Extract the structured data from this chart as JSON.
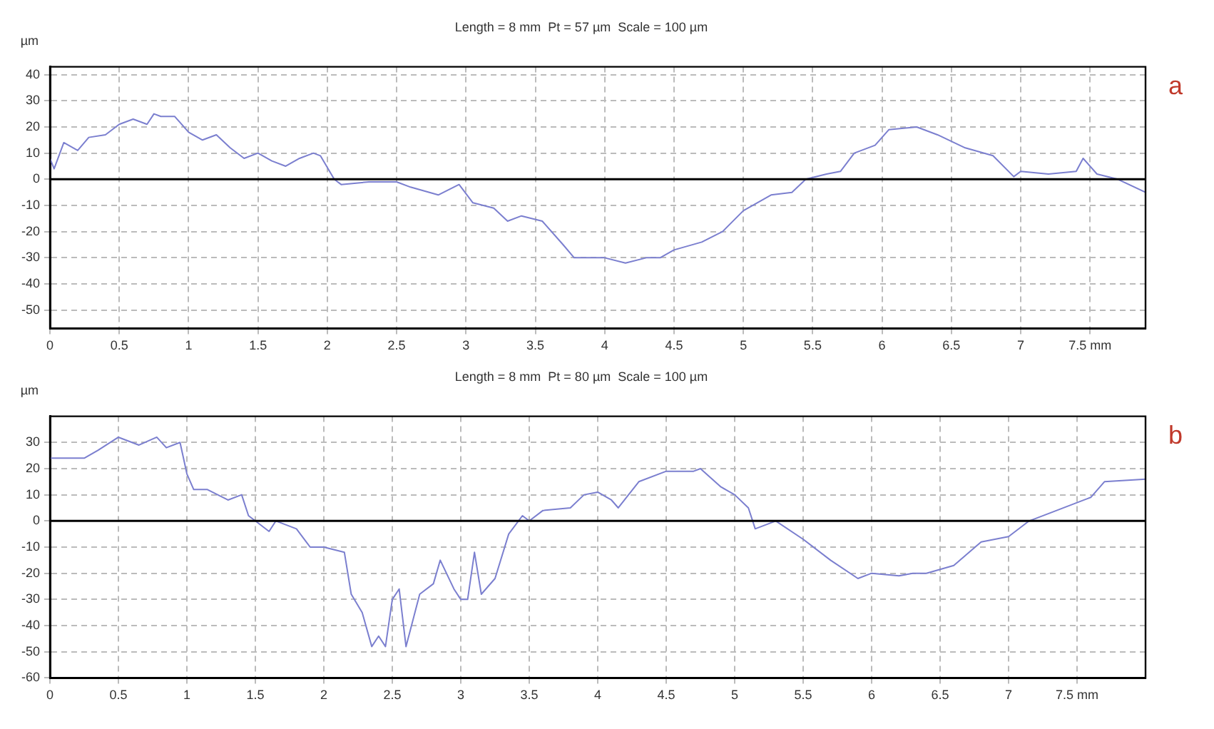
{
  "chart_data": [
    {
      "type": "line",
      "title": "Length = 8 mm  Pt = 57 µm  Scale = 100 µm",
      "ylabel": "µm",
      "annotations": [
        "a"
      ],
      "series": [
        {
          "color": "#7b7fcf",
          "x": [
            0,
            0.03,
            0.1,
            0.2,
            0.28,
            0.4,
            0.5,
            0.6,
            0.7,
            0.75,
            0.8,
            0.9,
            1.0,
            1.1,
            1.2,
            1.3,
            1.4,
            1.5,
            1.6,
            1.7,
            1.8,
            1.9,
            1.95,
            2.05,
            2.1,
            2.3,
            2.5,
            2.6,
            2.8,
            2.95,
            3.05,
            3.2,
            3.3,
            3.4,
            3.55,
            3.7,
            3.78,
            4.0,
            4.15,
            4.3,
            4.4,
            4.5,
            4.7,
            4.85,
            5.0,
            5.2,
            5.35,
            5.45,
            5.6,
            5.7,
            5.8,
            5.95,
            6.05,
            6.25,
            6.4,
            6.6,
            6.8,
            6.95,
            7.0,
            7.2,
            7.4,
            7.45,
            7.55,
            7.7,
            7.9
          ],
          "values": [
            8,
            4,
            14,
            11,
            16,
            17,
            21,
            23,
            21,
            25,
            24,
            24,
            18,
            15,
            17,
            12,
            8,
            10,
            7,
            5,
            8,
            10,
            9,
            0,
            -2,
            -1,
            -1,
            -3,
            -6,
            -2,
            -9,
            -11,
            -16,
            -14,
            -16,
            -25,
            -30,
            -30,
            -32,
            -30,
            -30,
            -27,
            -24,
            -20,
            -12,
            -6,
            -5,
            0,
            2,
            3,
            10,
            13,
            19,
            20,
            17,
            12,
            9,
            1,
            3,
            2,
            3,
            8,
            2,
            0,
            -5
          ]
        }
      ],
      "xlim": [
        0,
        7.9
      ],
      "xticks": [
        0,
        0.5,
        1,
        1.5,
        2,
        2.5,
        3,
        3.5,
        4,
        4.5,
        5,
        5.5,
        6,
        6.5,
        7,
        {
          "value": 7.5,
          "label": "7.5 mm"
        }
      ],
      "ylim": [
        -57,
        43
      ],
      "yticks": [
        -50,
        -40,
        -30,
        -20,
        -10,
        0,
        10,
        20,
        30,
        40
      ],
      "grid": true,
      "legend": false,
      "marker": "none",
      "line_style": "solid",
      "ref_lines": [
        {
          "axis": "y",
          "value": 0,
          "color": "#000000"
        }
      ]
    },
    {
      "type": "line",
      "title": "Length = 8 mm  Pt = 80 µm  Scale = 100 µm",
      "ylabel": "µm",
      "annotations": [
        "b"
      ],
      "series": [
        {
          "color": "#7b7fcf",
          "x": [
            0,
            0.25,
            0.35,
            0.5,
            0.65,
            0.78,
            0.85,
            0.95,
            1.0,
            1.05,
            1.15,
            1.3,
            1.4,
            1.45,
            1.5,
            1.6,
            1.65,
            1.8,
            1.9,
            2.0,
            2.15,
            2.2,
            2.28,
            2.35,
            2.4,
            2.45,
            2.5,
            2.55,
            2.6,
            2.7,
            2.8,
            2.85,
            2.95,
            3.0,
            3.05,
            3.1,
            3.15,
            3.25,
            3.35,
            3.45,
            3.5,
            3.6,
            3.8,
            3.9,
            4.0,
            4.1,
            4.15,
            4.3,
            4.5,
            4.7,
            4.75,
            4.9,
            5.0,
            5.1,
            5.15,
            5.3,
            5.5,
            5.7,
            5.9,
            6.0,
            6.2,
            6.3,
            6.4,
            6.6,
            6.8,
            7.0,
            7.15,
            7.3,
            7.5,
            7.6,
            7.7,
            8.0
          ],
          "values": [
            24,
            24,
            27,
            32,
            29,
            32,
            28,
            30,
            18,
            12,
            12,
            8,
            10,
            2,
            0,
            -4,
            0,
            -3,
            -10,
            -10,
            -12,
            -28,
            -35,
            -48,
            -44,
            -48,
            -30,
            -26,
            -48,
            -28,
            -24,
            -15,
            -26,
            -30,
            -30,
            -12,
            -28,
            -22,
            -5,
            2,
            0,
            4,
            5,
            10,
            11,
            8,
            5,
            15,
            19,
            19,
            20,
            13,
            10,
            5,
            -3,
            0,
            -7,
            -15,
            -22,
            -20,
            -21,
            -20,
            -20,
            -17,
            -8,
            -6,
            0,
            3,
            7,
            9,
            15,
            16
          ]
        }
      ],
      "xlim": [
        0,
        8
      ],
      "xticks": [
        0,
        0.5,
        1,
        1.5,
        2,
        2.5,
        3,
        3.5,
        4,
        4.5,
        5,
        5.5,
        6,
        6.5,
        7,
        {
          "value": 7.5,
          "label": "7.5 mm"
        }
      ],
      "ylim": [
        -60,
        40
      ],
      "yticks": [
        -60,
        -50,
        -40,
        -30,
        -20,
        -10,
        0,
        10,
        20,
        30
      ],
      "grid": true,
      "legend": false,
      "marker": "none",
      "line_style": "solid",
      "ref_lines": [
        {
          "axis": "y",
          "value": 0,
          "color": "#000000"
        }
      ]
    }
  ]
}
